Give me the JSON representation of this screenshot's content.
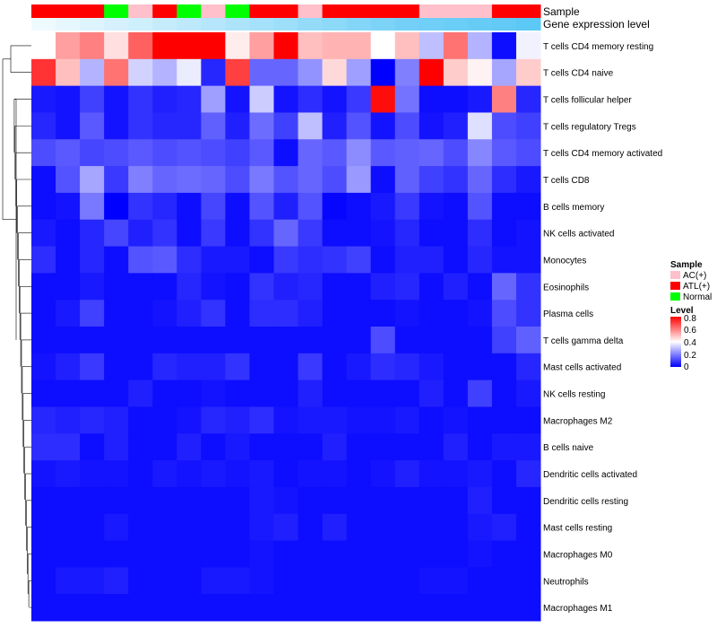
{
  "chart_data": {
    "type": "heatmap",
    "title": "",
    "annotation_labels": {
      "sample": "Sample",
      "gene_expression": "Gene expression level"
    },
    "columns": 20,
    "sample_colors": {
      "AC(+)": "#ffc0cb",
      "ATL(+)": "#ff0000",
      "Normal": "#00ff00"
    },
    "sample_groups": [
      "ATL(+)",
      "ATL(+)",
      "ATL(+)",
      "Normal",
      "AC(+)",
      "ATL(+)",
      "Normal",
      "AC(+)",
      "Normal",
      "ATL(+)",
      "ATL(+)",
      "AC(+)",
      "ATL(+)",
      "ATL(+)",
      "ATL(+)",
      "ATL(+)",
      "AC(+)",
      "AC(+)",
      "AC(+)",
      "ATL(+)",
      "ATL(+)"
    ],
    "gene_expression_levels": [
      0.1,
      0.15,
      0.2,
      0.25,
      0.3,
      0.35,
      0.4,
      0.45,
      0.5,
      0.55,
      0.6,
      0.65,
      0.7,
      0.75,
      0.8,
      0.85,
      0.88,
      0.9,
      0.93,
      0.96,
      1.0
    ],
    "rows": [
      "T cells CD4 memory resting",
      "T cells CD4 naive",
      "T cells follicular helper",
      "T cells regulatory  Tregs",
      "T cells CD4 memory activated",
      "T cells CD8",
      "B cells memory",
      "NK cells activated",
      "Monocytes",
      "Eosinophils",
      "Plasma cells",
      "T cells gamma delta",
      "Mast cells activated",
      "NK cells resting",
      "Macrophages M2",
      "B cells naive",
      "Dendritic cells activated",
      "Dendritic cells resting",
      "Mast cells resting",
      "Macrophages M0",
      "Neutrophils",
      "Macrophages M1"
    ],
    "values": [
      [
        0.4,
        0.55,
        0.6,
        0.45,
        0.65,
        0.8,
        0.8,
        0.8,
        0.43,
        0.55,
        0.8,
        0.5,
        0.52,
        0.52,
        0.4,
        0.5,
        0.3,
        0.62,
        0.28,
        0.02,
        0.38
      ],
      [
        0.72,
        0.5,
        0.28,
        0.62,
        0.33,
        0.28,
        0.37,
        0.06,
        0.7,
        0.16,
        0.16,
        0.23,
        0.46,
        0.25,
        0.0,
        0.2,
        0.8,
        0.48,
        0.42,
        0.26,
        0.48
      ],
      [
        0.04,
        0.03,
        0.1,
        0.03,
        0.08,
        0.05,
        0.06,
        0.25,
        0.03,
        0.32,
        0.03,
        0.07,
        0.03,
        0.09,
        0.78,
        0.18,
        0.02,
        0.02,
        0.04,
        0.6,
        0.06
      ],
      [
        0.06,
        0.03,
        0.14,
        0.03,
        0.08,
        0.06,
        0.06,
        0.15,
        0.05,
        0.17,
        0.1,
        0.3,
        0.05,
        0.13,
        0.03,
        0.12,
        0.03,
        0.05,
        0.35,
        0.12,
        0.1
      ],
      [
        0.12,
        0.14,
        0.11,
        0.12,
        0.14,
        0.12,
        0.13,
        0.12,
        0.1,
        0.14,
        0.02,
        0.16,
        0.14,
        0.22,
        0.14,
        0.15,
        0.16,
        0.12,
        0.21,
        0.14,
        0.12
      ],
      [
        0.02,
        0.13,
        0.26,
        0.09,
        0.2,
        0.16,
        0.17,
        0.16,
        0.12,
        0.19,
        0.13,
        0.16,
        0.12,
        0.24,
        0.02,
        0.15,
        0.1,
        0.08,
        0.16,
        0.07,
        0.04
      ],
      [
        0.02,
        0.03,
        0.19,
        0.0,
        0.08,
        0.06,
        0.02,
        0.11,
        0.02,
        0.13,
        0.05,
        0.13,
        0.01,
        0.02,
        0.04,
        0.09,
        0.03,
        0.02,
        0.13,
        0.02,
        0.02
      ],
      [
        0.04,
        0.02,
        0.06,
        0.11,
        0.05,
        0.08,
        0.02,
        0.09,
        0.02,
        0.08,
        0.16,
        0.09,
        0.02,
        0.02,
        0.03,
        0.06,
        0.02,
        0.02,
        0.07,
        0.02,
        0.03
      ],
      [
        0.07,
        0.02,
        0.06,
        0.02,
        0.13,
        0.14,
        0.07,
        0.04,
        0.04,
        0.02,
        0.09,
        0.07,
        0.08,
        0.1,
        0.02,
        0.05,
        0.05,
        0.02,
        0.06,
        0.03,
        0.03
      ],
      [
        0.02,
        0.02,
        0.04,
        0.02,
        0.02,
        0.02,
        0.06,
        0.03,
        0.02,
        0.08,
        0.05,
        0.06,
        0.02,
        0.02,
        0.05,
        0.06,
        0.02,
        0.05,
        0.02,
        0.16,
        0.08
      ],
      [
        0.02,
        0.04,
        0.1,
        0.02,
        0.02,
        0.03,
        0.05,
        0.08,
        0.02,
        0.07,
        0.07,
        0.05,
        0.02,
        0.02,
        0.02,
        0.03,
        0.02,
        0.02,
        0.03,
        0.12,
        0.08
      ],
      [
        0.02,
        0.02,
        0.02,
        0.02,
        0.02,
        0.02,
        0.02,
        0.02,
        0.02,
        0.02,
        0.02,
        0.02,
        0.02,
        0.02,
        0.12,
        0.02,
        0.02,
        0.02,
        0.02,
        0.1,
        0.15
      ],
      [
        0.03,
        0.05,
        0.09,
        0.02,
        0.02,
        0.06,
        0.05,
        0.05,
        0.08,
        0.02,
        0.02,
        0.09,
        0.02,
        0.04,
        0.07,
        0.06,
        0.04,
        0.02,
        0.02,
        0.02,
        0.06
      ],
      [
        0.02,
        0.02,
        0.02,
        0.02,
        0.05,
        0.02,
        0.02,
        0.03,
        0.02,
        0.02,
        0.02,
        0.05,
        0.02,
        0.02,
        0.02,
        0.02,
        0.05,
        0.02,
        0.1,
        0.02,
        0.04
      ],
      [
        0.06,
        0.05,
        0.06,
        0.05,
        0.02,
        0.02,
        0.03,
        0.06,
        0.05,
        0.07,
        0.03,
        0.04,
        0.04,
        0.03,
        0.03,
        0.04,
        0.02,
        0.03,
        0.02,
        0.02,
        0.02
      ],
      [
        0.07,
        0.07,
        0.02,
        0.05,
        0.02,
        0.02,
        0.05,
        0.02,
        0.04,
        0.02,
        0.02,
        0.02,
        0.05,
        0.02,
        0.02,
        0.02,
        0.02,
        0.05,
        0.02,
        0.04,
        0.04
      ],
      [
        0.03,
        0.04,
        0.03,
        0.03,
        0.02,
        0.04,
        0.03,
        0.04,
        0.03,
        0.04,
        0.02,
        0.03,
        0.03,
        0.02,
        0.03,
        0.05,
        0.03,
        0.03,
        0.04,
        0.02,
        0.06
      ],
      [
        0.02,
        0.02,
        0.02,
        0.02,
        0.02,
        0.02,
        0.02,
        0.02,
        0.02,
        0.04,
        0.03,
        0.02,
        0.02,
        0.02,
        0.02,
        0.02,
        0.02,
        0.02,
        0.05,
        0.02,
        0.02
      ],
      [
        0.02,
        0.02,
        0.02,
        0.04,
        0.02,
        0.02,
        0.02,
        0.02,
        0.02,
        0.04,
        0.05,
        0.02,
        0.05,
        0.02,
        0.02,
        0.02,
        0.02,
        0.02,
        0.04,
        0.05,
        0.02
      ],
      [
        0.02,
        0.02,
        0.02,
        0.02,
        0.02,
        0.02,
        0.02,
        0.02,
        0.02,
        0.03,
        0.02,
        0.02,
        0.02,
        0.02,
        0.02,
        0.02,
        0.02,
        0.02,
        0.03,
        0.02,
        0.02
      ],
      [
        0.02,
        0.04,
        0.04,
        0.05,
        0.02,
        0.02,
        0.02,
        0.04,
        0.04,
        0.03,
        0.02,
        0.02,
        0.02,
        0.02,
        0.02,
        0.02,
        0.03,
        0.03,
        0.02,
        0.02,
        0.02
      ],
      [
        0.02,
        0.02,
        0.02,
        0.02,
        0.02,
        0.02,
        0.02,
        0.02,
        0.02,
        0.02,
        0.02,
        0.02,
        0.02,
        0.02,
        0.02,
        0.02,
        0.02,
        0.02,
        0.02,
        0.02,
        0.02
      ]
    ],
    "legend": {
      "sample_title": "Sample",
      "sample_items": [
        {
          "label": "AC(+)",
          "color": "#ffc0cb"
        },
        {
          "label": "ATL(+)",
          "color": "#ff0000"
        },
        {
          "label": "Normal",
          "color": "#00ff00"
        }
      ],
      "level_title": "Level",
      "level_ticks": [
        "0.8",
        "0.6",
        "0.4",
        "0.2",
        "0"
      ],
      "level_range": [
        0,
        0.8
      ]
    },
    "colors": {
      "low": "#0000ff",
      "mid": "#ffffff",
      "high": "#ff0000",
      "annotation_blue": "#5bc8f5"
    }
  }
}
